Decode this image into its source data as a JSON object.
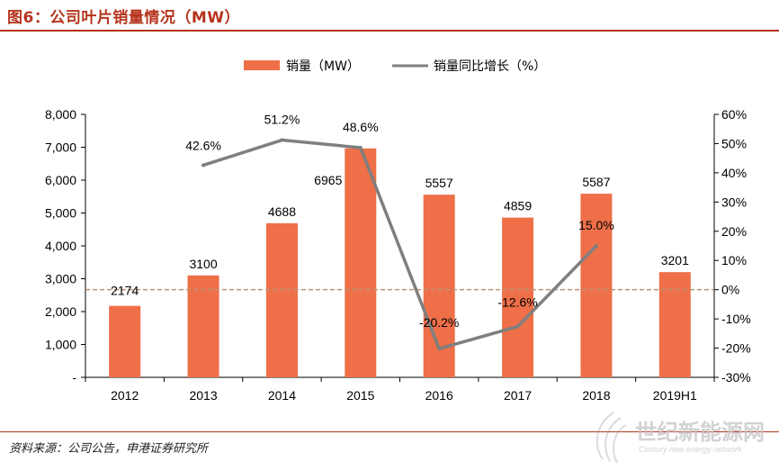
{
  "header": {
    "title": "图6：公司叶片销量情况（MW）"
  },
  "footer": {
    "source": "资料来源：公司公告，申港证券研究所"
  },
  "watermark": {
    "text": "世纪新能源网",
    "subtext": "Century new energy network"
  },
  "colors": {
    "bar": "#ee6f48",
    "line": "#7f7f7f",
    "zero_line": "#b9957a",
    "title": "#b5331d"
  },
  "chart_data": {
    "type": "bar",
    "title": "",
    "categories": [
      "2012",
      "2013",
      "2014",
      "2015",
      "2016",
      "2017",
      "2018",
      "2019H1"
    ],
    "series": [
      {
        "name": "销量（MW）",
        "type": "bar",
        "axis": "left",
        "values": [
          2174,
          3100,
          4688,
          6965,
          5557,
          4859,
          5587,
          3201
        ],
        "labels": [
          "2174",
          "3100",
          "4688",
          "6965",
          "5557",
          "4859",
          "5587",
          "3201"
        ]
      },
      {
        "name": "销量同比增长（%）",
        "type": "line",
        "axis": "right",
        "values": [
          null,
          42.6,
          51.2,
          48.6,
          -20.2,
          -12.6,
          15.0,
          null
        ],
        "labels": [
          "",
          "42.6%",
          "51.2%",
          "48.6%",
          "-20.2%",
          "-12.6%",
          "15.0%",
          ""
        ]
      }
    ],
    "y_left": {
      "ylim": [
        0,
        8000
      ],
      "ticks": [
        "-",
        "1,000",
        "2,000",
        "3,000",
        "4,000",
        "5,000",
        "6,000",
        "7,000",
        "8,000"
      ]
    },
    "y_right": {
      "ylim": [
        -30,
        60
      ],
      "ticks": [
        "-30%",
        "-20%",
        "-10%",
        "0%",
        "10%",
        "20%",
        "30%",
        "40%",
        "50%",
        "60%"
      ]
    },
    "reference_line": {
      "axis": "right",
      "value": 0,
      "style": "dashed"
    },
    "legend_position": "top-center",
    "grid": false
  }
}
